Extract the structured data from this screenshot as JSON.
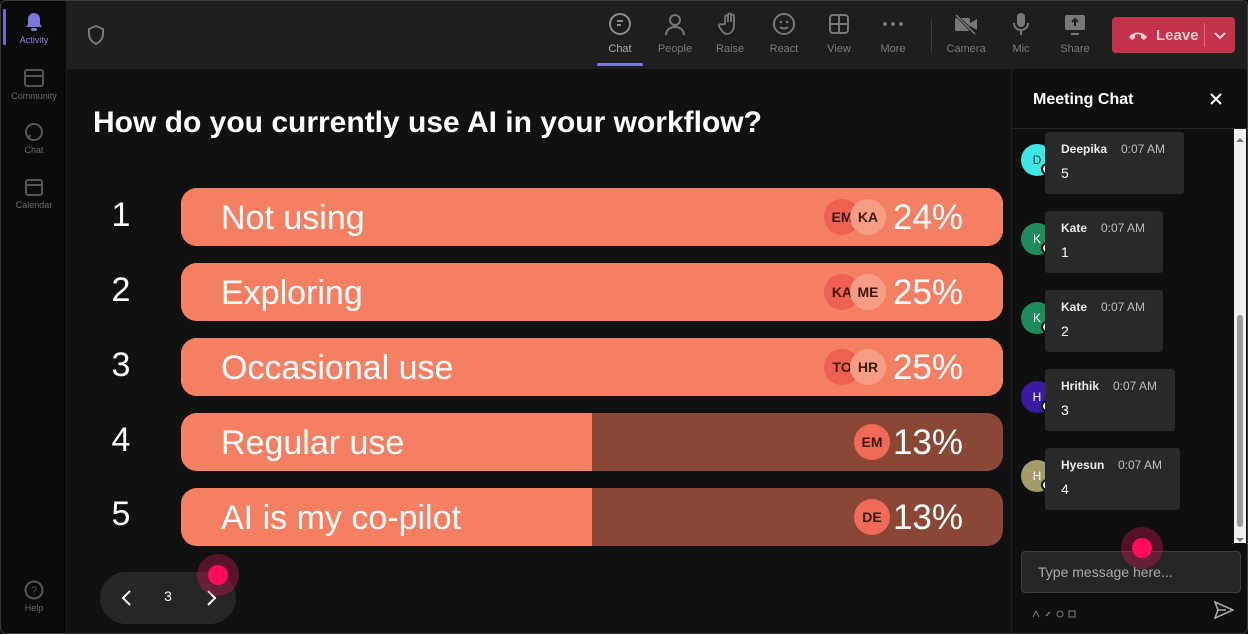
{
  "rail": {
    "items": [
      {
        "label": "Activity",
        "icon": "bell-icon"
      },
      {
        "label": "Community",
        "icon": "community-icon"
      },
      {
        "label": "Chat",
        "icon": "chat-bubble-icon"
      },
      {
        "label": "Calendar",
        "icon": "calendar-icon"
      }
    ],
    "help_label": "Help"
  },
  "toolbar": {
    "buttons": [
      {
        "label": "Chat",
        "icon": "chat-icon"
      },
      {
        "label": "People",
        "icon": "people-icon"
      },
      {
        "label": "Raise",
        "icon": "hand-icon"
      },
      {
        "label": "React",
        "icon": "smiley-icon"
      },
      {
        "label": "View",
        "icon": "grid-icon"
      },
      {
        "label": "More",
        "icon": "ellipsis-icon"
      },
      {
        "label": "Camera",
        "icon": "camera-off-icon"
      },
      {
        "label": "Mic",
        "icon": "mic-icon"
      },
      {
        "label": "Share",
        "icon": "share-icon"
      }
    ],
    "leave_label": "Leave",
    "leave_color": "#c4314b"
  },
  "poll": {
    "question": "How do you currently use AI in your workflow?",
    "bar_color": "#f47f63",
    "options": [
      {
        "num": "1",
        "label": "Not using",
        "pct": "24%",
        "fill": 1.0,
        "avatars": [
          "EM",
          "KA"
        ]
      },
      {
        "num": "2",
        "label": "Exploring",
        "pct": "25%",
        "fill": 1.0,
        "avatars": [
          "KA",
          "ME"
        ]
      },
      {
        "num": "3",
        "label": "Occasional use",
        "pct": "25%",
        "fill": 1.0,
        "avatars": [
          "TO",
          "HR"
        ]
      },
      {
        "num": "4",
        "label": "Regular use",
        "pct": "13%",
        "fill": 0.5,
        "avatars": [
          "EM"
        ]
      },
      {
        "num": "5",
        "label": "AI is my co-pilot",
        "pct": "13%",
        "fill": 0.5,
        "avatars": [
          "DE"
        ]
      }
    ],
    "page": "3"
  },
  "chat": {
    "title": "Meeting Chat",
    "messages": [
      {
        "initial": "D",
        "name": "Deepika",
        "time": "0:07 AM",
        "text": "5",
        "color": "#3ee6e6"
      },
      {
        "initial": "K",
        "name": "Kate",
        "time": "0:07 AM",
        "text": "1",
        "color": "#1f8a5a"
      },
      {
        "initial": "K",
        "name": "Kate",
        "time": "0:07 AM",
        "text": "2",
        "color": "#1f8a5a"
      },
      {
        "initial": "H",
        "name": "Hrithik",
        "time": "0:07 AM",
        "text": "3",
        "color": "#3a1aa0"
      },
      {
        "initial": "H",
        "name": "Hyesun",
        "time": "0:07 AM",
        "text": "4",
        "color": "#a59a6a"
      }
    ],
    "input_placeholder": "Type message here..."
  }
}
